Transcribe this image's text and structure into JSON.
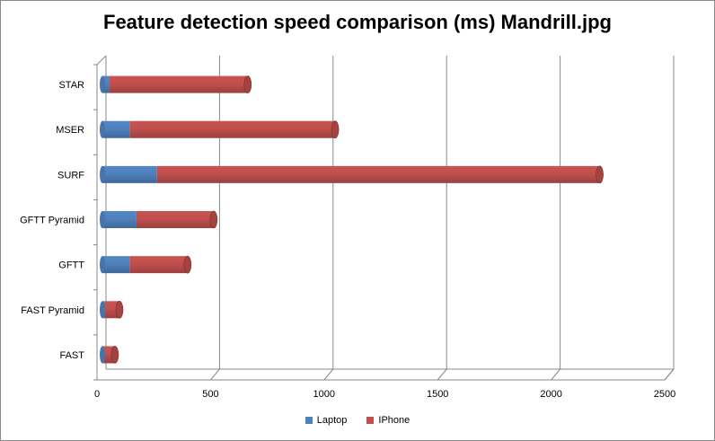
{
  "chart_data": {
    "type": "bar",
    "orientation": "horizontal",
    "stacked": true,
    "title": "Feature detection speed comparison (ms) Mandrill.jpg",
    "categories": [
      "FAST",
      "FAST Pyramid",
      "GFTT",
      "GFTT Pyramid",
      "SURF",
      "MSER",
      "STAR"
    ],
    "series": [
      {
        "name": "Laptop",
        "color": "#4f81bd",
        "values": [
          5,
          10,
          120,
          150,
          240,
          120,
          30
        ]
      },
      {
        "name": "IPhone",
        "color": "#c0504d",
        "values": [
          50,
          65,
          255,
          340,
          1950,
          905,
          610
        ]
      }
    ],
    "xlim": [
      0,
      2500
    ],
    "xticks": [
      0,
      500,
      1000,
      1500,
      2000,
      2500
    ],
    "grid": true,
    "legend_position": "bottom"
  }
}
